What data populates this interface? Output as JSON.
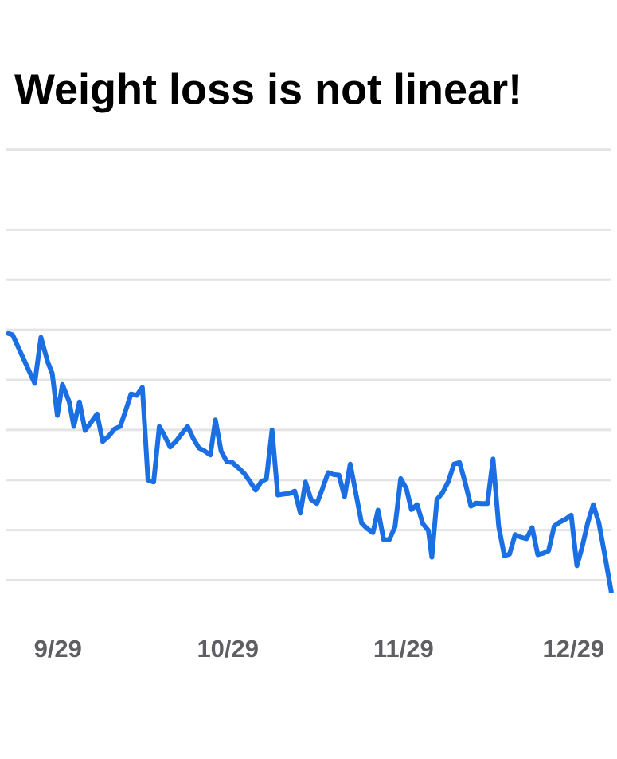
{
  "chart_data": {
    "type": "line",
    "title": "Weight loss is not linear!",
    "color": "#1a6fe3",
    "xlim": [
      -9.1,
      97.7
    ],
    "xticks": [
      {
        "value": 0,
        "label": "9/29"
      },
      {
        "value": 30,
        "label": "10/29"
      },
      {
        "value": 61,
        "label": "11/29"
      },
      {
        "value": 91,
        "label": "12/29"
      }
    ],
    "ylim": [
      -0.5,
      9.2
    ],
    "ygrid": [
      0,
      1,
      2,
      3,
      4,
      5,
      6,
      7,
      8.6
    ],
    "grid": true,
    "x": [
      -9.1,
      -8.0,
      -4.1,
      -3.0,
      -1.8,
      -1.0,
      -0.1,
      0.8,
      2.0,
      2.8,
      3.8,
      4.8,
      5.9,
      6.9,
      7.9,
      9.0,
      10.0,
      11.0,
      12.0,
      12.9,
      13.9,
      14.9,
      15.9,
      16.9,
      17.9,
      18.8,
      19.8,
      20.8,
      21.9,
      22.9,
      23.9,
      24.9,
      25.9,
      26.9,
      27.8,
      28.8,
      29.8,
      30.8,
      31.9,
      32.9,
      33.9,
      34.9,
      35.9,
      36.8,
      37.8,
      38.8,
      39.8,
      40.8,
      41.8,
      42.8,
      43.7,
      44.7,
      45.7,
      46.7,
      47.7,
      48.7,
      49.6,
      50.6,
      51.6,
      52.6,
      53.6,
      54.6,
      55.6,
      56.5,
      57.5,
      58.5,
      59.5,
      60.5,
      61.5,
      62.4,
      63.4,
      64.4,
      65.4,
      66.0,
      66.9,
      67.9,
      68.9,
      69.9,
      70.9,
      71.9,
      72.9,
      73.8,
      74.8,
      75.8,
      76.8,
      77.8,
      78.8,
      79.7,
      80.7,
      81.7,
      82.7,
      83.7,
      84.7,
      85.7,
      86.6,
      87.6,
      88.6,
      89.6,
      90.6,
      91.6,
      92.5,
      93.5,
      94.5,
      95.5,
      96.5,
      97.7
    ],
    "values": [
      4.94,
      4.9,
      3.93,
      4.85,
      4.36,
      4.13,
      3.29,
      3.91,
      3.56,
      3.07,
      3.56,
      2.99,
      3.16,
      3.32,
      2.77,
      2.88,
      3.02,
      3.07,
      3.4,
      3.72,
      3.69,
      3.85,
      2.0,
      1.96,
      3.07,
      2.89,
      2.66,
      2.77,
      2.93,
      3.07,
      2.83,
      2.64,
      2.58,
      2.5,
      3.2,
      2.58,
      2.37,
      2.35,
      2.24,
      2.13,
      1.97,
      1.8,
      1.97,
      2.02,
      3.0,
      1.7,
      1.72,
      1.73,
      1.78,
      1.34,
      1.96,
      1.61,
      1.53,
      1.83,
      2.15,
      2.11,
      2.1,
      1.67,
      2.32,
      1.73,
      1.14,
      1.03,
      0.95,
      1.4,
      0.81,
      0.81,
      1.07,
      2.03,
      1.83,
      1.41,
      1.51,
      1.13,
      0.99,
      0.46,
      1.61,
      1.75,
      1.97,
      2.32,
      2.35,
      1.94,
      1.48,
      1.54,
      1.53,
      1.53,
      2.42,
      1.07,
      0.49,
      0.52,
      0.91,
      0.86,
      0.83,
      1.05,
      0.51,
      0.54,
      0.59,
      1.08,
      1.16,
      1.22,
      1.3,
      0.29,
      0.65,
      1.14,
      1.51,
      1.14,
      0.52,
      -0.25
    ]
  }
}
